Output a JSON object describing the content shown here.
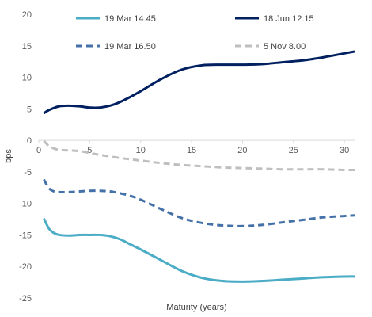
{
  "chart_data": {
    "type": "line",
    "xlabel": "Maturity (years)",
    "ylabel": "bps",
    "xlim": [
      0,
      31
    ],
    "ylim": [
      -25,
      20
    ],
    "xticks": [
      0,
      5,
      10,
      15,
      20,
      25,
      30
    ],
    "yticks": [
      20,
      15,
      10,
      5,
      0,
      -5,
      -10,
      -15,
      -20,
      -25
    ],
    "grid": false,
    "legend_position": "top",
    "series": [
      {
        "name": "19 Mar 14.45",
        "color": "#4bacc6",
        "dash": "solid",
        "x": [
          0.5,
          1,
          1.5,
          2,
          3,
          4,
          5,
          6,
          7,
          8,
          9,
          10,
          12,
          14,
          16,
          18,
          20,
          22,
          24,
          26,
          28,
          30,
          31
        ],
        "y": [
          -12.4,
          -14.0,
          -14.7,
          -15.0,
          -15.1,
          -15.0,
          -15.0,
          -15.0,
          -15.2,
          -15.7,
          -16.5,
          -17.3,
          -19.0,
          -20.7,
          -21.8,
          -22.3,
          -22.4,
          -22.3,
          -22.1,
          -21.9,
          -21.7,
          -21.6,
          -21.6
        ]
      },
      {
        "name": "18 Jun 12.15",
        "color": "#002060",
        "dash": "solid",
        "x": [
          0.5,
          1,
          2,
          3,
          4,
          5,
          6,
          7,
          8,
          9,
          10,
          12,
          14,
          16,
          18,
          20,
          22,
          24,
          26,
          28,
          30,
          31
        ],
        "y": [
          4.3,
          4.8,
          5.4,
          5.5,
          5.4,
          5.2,
          5.2,
          5.5,
          6.1,
          6.9,
          7.8,
          9.7,
          11.2,
          11.9,
          12.0,
          12.0,
          12.1,
          12.4,
          12.7,
          13.2,
          13.8,
          14.1
        ]
      },
      {
        "name": "19 Mar 16.50",
        "color": "#4472a8",
        "dash": "dash",
        "x": [
          0.5,
          1,
          1.5,
          2,
          3,
          4,
          5,
          6,
          7,
          8,
          9,
          10,
          12,
          14,
          16,
          18,
          20,
          22,
          24,
          26,
          28,
          30,
          31
        ],
        "y": [
          -6.2,
          -7.6,
          -8.1,
          -8.2,
          -8.2,
          -8.1,
          -8.0,
          -8.0,
          -8.1,
          -8.4,
          -8.8,
          -9.4,
          -10.9,
          -12.3,
          -13.1,
          -13.5,
          -13.6,
          -13.4,
          -13.0,
          -12.6,
          -12.2,
          -12.0,
          -11.9
        ]
      },
      {
        "name": "5 Nov 8.00",
        "color": "#bfbfbf",
        "dash": "dash",
        "x": [
          0.5,
          1,
          1.5,
          2,
          3,
          4,
          5,
          6,
          8,
          10,
          12,
          14,
          16,
          18,
          20,
          22,
          24,
          26,
          28,
          30,
          31
        ],
        "y": [
          -0.1,
          -0.9,
          -1.3,
          -1.5,
          -1.6,
          -1.7,
          -2.0,
          -2.3,
          -2.8,
          -3.2,
          -3.6,
          -3.9,
          -4.1,
          -4.3,
          -4.4,
          -4.5,
          -4.6,
          -4.6,
          -4.6,
          -4.7,
          -4.7
        ]
      }
    ]
  }
}
